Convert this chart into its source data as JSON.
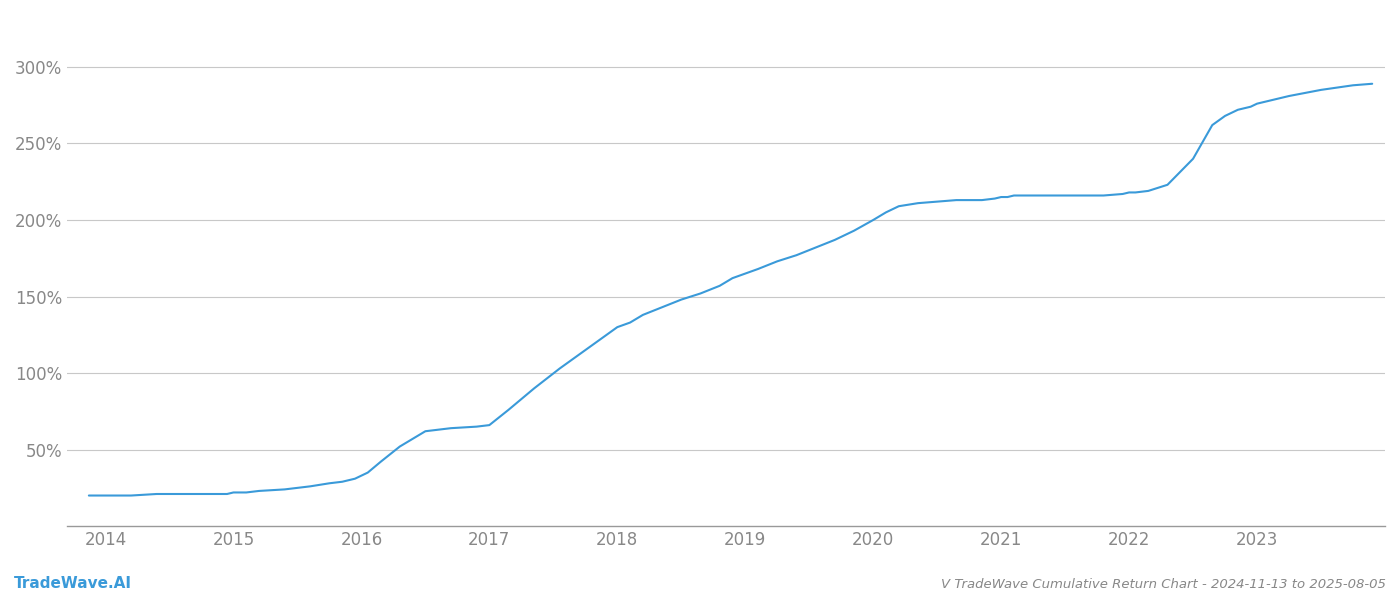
{
  "title": "V TradeWave Cumulative Return Chart - 2024-11-13 to 2025-08-05",
  "watermark": "TradeWave.AI",
  "line_color": "#3a9ad9",
  "background_color": "#ffffff",
  "grid_color": "#c8c8c8",
  "x_years": [
    2014,
    2015,
    2016,
    2017,
    2018,
    2019,
    2020,
    2021,
    2022,
    2023
  ],
  "x_values": [
    2013.87,
    2014.0,
    2014.1,
    2014.2,
    2014.4,
    2014.6,
    2014.8,
    2014.95,
    2015.0,
    2015.1,
    2015.2,
    2015.4,
    2015.6,
    2015.75,
    2015.85,
    2015.95,
    2016.05,
    2016.15,
    2016.3,
    2016.5,
    2016.7,
    2016.9,
    2017.0,
    2017.15,
    2017.35,
    2017.55,
    2017.75,
    2017.9,
    2018.0,
    2018.1,
    2018.2,
    2018.35,
    2018.5,
    2018.65,
    2018.8,
    2018.9,
    2019.0,
    2019.1,
    2019.25,
    2019.4,
    2019.55,
    2019.7,
    2019.85,
    2020.0,
    2020.1,
    2020.2,
    2020.35,
    2020.5,
    2020.65,
    2020.75,
    2020.85,
    2020.95,
    2021.0,
    2021.05,
    2021.1,
    2021.2,
    2021.35,
    2021.5,
    2021.65,
    2021.8,
    2021.95,
    2022.0,
    2022.05,
    2022.15,
    2022.3,
    2022.5,
    2022.65,
    2022.75,
    2022.85,
    2022.95,
    2023.0,
    2023.1,
    2023.25,
    2023.5,
    2023.75,
    2023.9
  ],
  "y_values": [
    20,
    20,
    20,
    20,
    21,
    21,
    21,
    21,
    22,
    22,
    23,
    24,
    26,
    28,
    29,
    31,
    35,
    42,
    52,
    62,
    64,
    65,
    66,
    76,
    90,
    103,
    115,
    124,
    130,
    133,
    138,
    143,
    148,
    152,
    157,
    162,
    165,
    168,
    173,
    177,
    182,
    187,
    193,
    200,
    205,
    209,
    211,
    212,
    213,
    213,
    213,
    214,
    215,
    215,
    216,
    216,
    216,
    216,
    216,
    216,
    217,
    218,
    218,
    219,
    223,
    240,
    262,
    268,
    272,
    274,
    276,
    278,
    281,
    285,
    288,
    289
  ],
  "yticks": [
    50,
    100,
    150,
    200,
    250,
    300
  ],
  "ylim": [
    0,
    330
  ],
  "xlim": [
    2013.7,
    2024.0
  ],
  "title_fontsize": 9.5,
  "watermark_fontsize": 11,
  "tick_fontsize": 12,
  "tick_color": "#888888",
  "spine_color": "#999999"
}
